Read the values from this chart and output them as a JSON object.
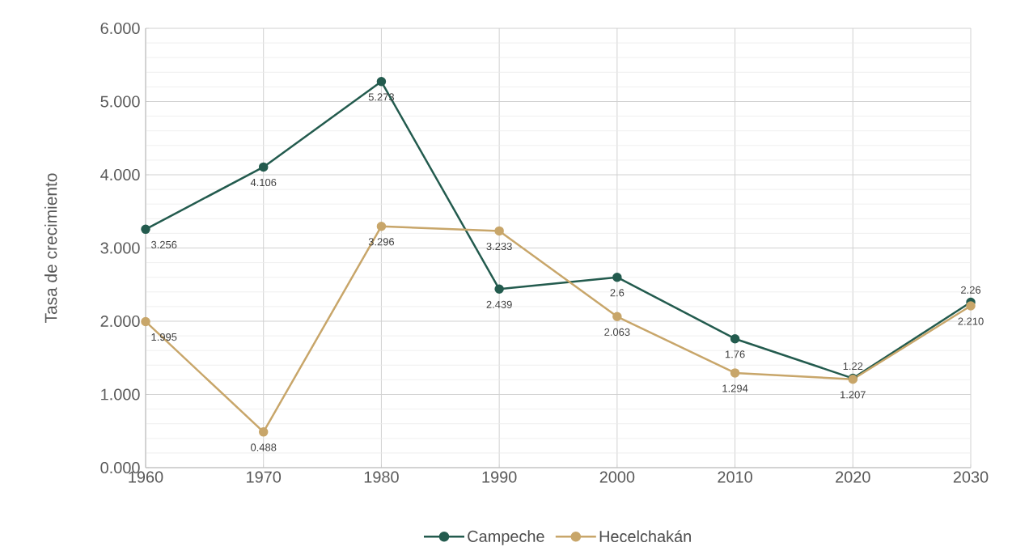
{
  "chart_data": {
    "type": "line",
    "ylabel": "Tasa de crecimiento",
    "x": [
      1960,
      1970,
      1980,
      1990,
      2000,
      2010,
      2020,
      2030
    ],
    "series": [
      {
        "name": "Campeche",
        "color": "#235b4e",
        "values": [
          3.256,
          4.106,
          5.273,
          2.439,
          2.6,
          1.76,
          1.22,
          2.26
        ],
        "value_labels": [
          "3.256",
          "4.106",
          "5.273",
          "2.439",
          "2.6",
          "1.76",
          "1.22",
          "2.26"
        ]
      },
      {
        "name": "Hecelchakán",
        "color": "#c8a66a",
        "values": [
          1.995,
          0.488,
          3.296,
          3.233,
          2.063,
          1.294,
          1.207,
          2.21
        ],
        "value_labels": [
          "1.995",
          "0.488",
          "3.296",
          "3.233",
          "2.063",
          "1.294",
          "1.207",
          "2.210"
        ]
      }
    ],
    "xlim": [
      1960,
      2030
    ],
    "xticks": [
      1960,
      1970,
      1980,
      1990,
      2000,
      2010,
      2020,
      2030
    ],
    "ylim": [
      0,
      6
    ],
    "yticks": [
      {
        "value": 0,
        "label": "0.000"
      },
      {
        "value": 1,
        "label": "1.000"
      },
      {
        "value": 2,
        "label": "2.000"
      },
      {
        "value": 3,
        "label": "3.000"
      },
      {
        "value": 4,
        "label": "4.000"
      },
      {
        "value": 5,
        "label": "5.000"
      },
      {
        "value": 6,
        "label": "6.000"
      }
    ],
    "grid": true,
    "legend": "bottom",
    "marker": "circle",
    "line_style": "solid"
  }
}
